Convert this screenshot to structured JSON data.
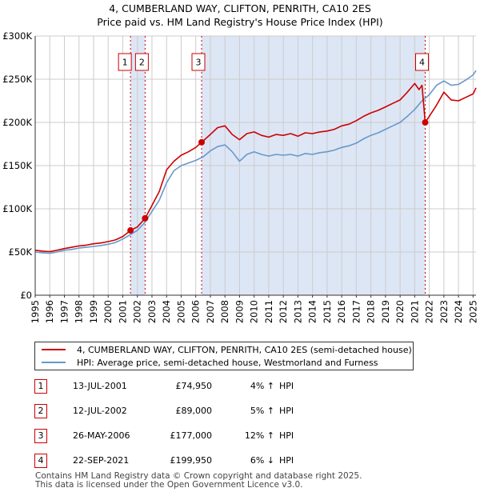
{
  "title": {
    "line1": "4, CUMBERLAND WAY, CLIFTON, PENRITH, CA10 2ES",
    "line2": "Price paid vs. HM Land Registry's House Price Index (HPI)"
  },
  "colors": {
    "property": "#cc0000",
    "hpi": "#6699cc",
    "shade": "#dde6f5",
    "marker_border": "#cc0000"
  },
  "chart_data": {
    "type": "line",
    "title": "4, CUMBERLAND WAY, CLIFTON, PENRITH, CA10 2ES — Price paid vs. HM Land Registry's House Price Index (HPI)",
    "xlabel": "",
    "ylabel": "",
    "xlim": [
      1995,
      2025.2
    ],
    "ylim": [
      0,
      300000
    ],
    "x_ticks": [
      "1995",
      "1996",
      "1997",
      "1998",
      "1999",
      "2000",
      "2001",
      "2002",
      "2003",
      "2004",
      "2005",
      "2006",
      "2007",
      "2008",
      "2009",
      "2010",
      "2011",
      "2012",
      "2013",
      "2014",
      "2015",
      "2016",
      "2017",
      "2018",
      "2019",
      "2020",
      "2021",
      "2022",
      "2023",
      "2024",
      "2025"
    ],
    "y_ticks": [
      {
        "value": 0,
        "label": "£0"
      },
      {
        "value": 50000,
        "label": "£50K"
      },
      {
        "value": 100000,
        "label": "£100K"
      },
      {
        "value": 150000,
        "label": "£150K"
      },
      {
        "value": 200000,
        "label": "£200K"
      },
      {
        "value": 250000,
        "label": "£250K"
      },
      {
        "value": 300000,
        "label": "£300K"
      }
    ],
    "grid": true,
    "series": [
      {
        "name": "4, CUMBERLAND WAY, CLIFTON, PENRITH, CA10 2ES (semi-detached house)",
        "color": "#cc0000",
        "x": [
          1995,
          1995.5,
          1996,
          1996.5,
          1997,
          1997.5,
          1998,
          1998.5,
          1999,
          1999.5,
          2000,
          2000.5,
          2001,
          2001.53,
          2002,
          2002.53,
          2003,
          2003.5,
          2004,
          2004.5,
          2005,
          2005.5,
          2006,
          2006.4,
          2007,
          2007.5,
          2008,
          2008.5,
          2009,
          2009.5,
          2010,
          2010.5,
          2011,
          2011.5,
          2012,
          2012.5,
          2013,
          2013.5,
          2014,
          2014.5,
          2015,
          2015.5,
          2016,
          2016.5,
          2017,
          2017.5,
          2018,
          2018.5,
          2019,
          2019.5,
          2020,
          2020.5,
          2021,
          2021.3,
          2021.5,
          2021.72,
          2022,
          2022.5,
          2023,
          2023.5,
          2024,
          2024.5,
          2025,
          2025.2
        ],
        "y": [
          52000,
          51000,
          50500,
          52000,
          54000,
          55500,
          57000,
          58000,
          59500,
          60500,
          62000,
          64000,
          68000,
          74950,
          79000,
          89000,
          104000,
          120000,
          145000,
          155000,
          162000,
          166000,
          171000,
          177000,
          186000,
          194000,
          196000,
          186000,
          180000,
          187000,
          189000,
          185000,
          183000,
          186000,
          185000,
          187000,
          184000,
          188000,
          187000,
          189000,
          190000,
          192000,
          196000,
          198000,
          202000,
          207000,
          211000,
          214000,
          218000,
          222000,
          226000,
          235000,
          245000,
          238000,
          243000,
          199950,
          207000,
          220000,
          235000,
          226000,
          225000,
          229000,
          233000,
          240000
        ]
      },
      {
        "name": "HPI: Average price, semi-detached house, Westmorland and Furness",
        "color": "#6699cc",
        "x": [
          1995,
          1995.5,
          1996,
          1996.5,
          1997,
          1997.5,
          1998,
          1998.5,
          1999,
          1999.5,
          2000,
          2000.5,
          2001,
          2001.5,
          2002,
          2002.5,
          2003,
          2003.5,
          2004,
          2004.5,
          2005,
          2005.5,
          2006,
          2006.5,
          2007,
          2007.5,
          2008,
          2008.5,
          2009,
          2009.5,
          2010,
          2010.5,
          2011,
          2011.5,
          2012,
          2012.5,
          2013,
          2013.5,
          2014,
          2014.5,
          2015,
          2015.5,
          2016,
          2016.5,
          2017,
          2017.5,
          2018,
          2018.5,
          2019,
          2019.5,
          2020,
          2020.5,
          2021,
          2021.5,
          2022,
          2022.5,
          2023,
          2023.5,
          2024,
          2024.5,
          2025,
          2025.2
        ],
        "y": [
          50000,
          49000,
          48500,
          50000,
          52000,
          53000,
          54500,
          55500,
          56500,
          57500,
          59000,
          61000,
          65000,
          70000,
          75000,
          84000,
          97000,
          110000,
          130000,
          144000,
          150000,
          153000,
          156000,
          160000,
          167000,
          172000,
          174000,
          166000,
          155000,
          163000,
          166000,
          163000,
          161000,
          163000,
          162000,
          163000,
          161000,
          164000,
          163000,
          165000,
          166000,
          168000,
          171000,
          173000,
          176000,
          181000,
          185000,
          188000,
          192000,
          196000,
          200000,
          207000,
          215000,
          225000,
          232000,
          243000,
          248000,
          243000,
          244000,
          249000,
          255000,
          260000
        ]
      }
    ],
    "shaded_periods": [
      [
        2001.53,
        2002.53
      ],
      [
        2006.4,
        2021.72
      ]
    ],
    "transactions": [
      {
        "num": "1",
        "x": 2001.53,
        "date": "13-JUL-2001",
        "price": "£74,950",
        "value": 74950,
        "pct": "4% ↑ HPI"
      },
      {
        "num": "2",
        "x": 2002.53,
        "date": "12-JUL-2002",
        "price": "£89,000",
        "value": 89000,
        "pct": "5% ↑ HPI"
      },
      {
        "num": "3",
        "x": 2006.4,
        "date": "26-MAY-2006",
        "price": "£177,000",
        "value": 177000,
        "pct": "12% ↑ HPI"
      },
      {
        "num": "4",
        "x": 2021.72,
        "date": "22-SEP-2021",
        "price": "£199,950",
        "value": 199950,
        "pct": "6% ↓ HPI"
      }
    ]
  },
  "legend": {
    "property_label": "4, CUMBERLAND WAY, CLIFTON, PENRITH, CA10 2ES (semi-detached house)",
    "hpi_label": "HPI: Average price, semi-detached house, Westmorland and Furness"
  },
  "table": [
    {
      "num": "1",
      "date": "13-JUL-2001",
      "price": "£74,950",
      "pct": "4% ↑",
      "hpi": "HPI"
    },
    {
      "num": "2",
      "date": "12-JUL-2002",
      "price": "£89,000",
      "pct": "5% ↑",
      "hpi": "HPI"
    },
    {
      "num": "3",
      "date": "26-MAY-2006",
      "price": "£177,000",
      "pct": "12% ↑",
      "hpi": "HPI"
    },
    {
      "num": "4",
      "date": "22-SEP-2021",
      "price": "£199,950",
      "pct": "6% ↓",
      "hpi": "HPI"
    }
  ],
  "footer": {
    "line1": "Contains HM Land Registry data © Crown copyright and database right 2025.",
    "line2": "This data is licensed under the Open Government Licence v3.0."
  }
}
